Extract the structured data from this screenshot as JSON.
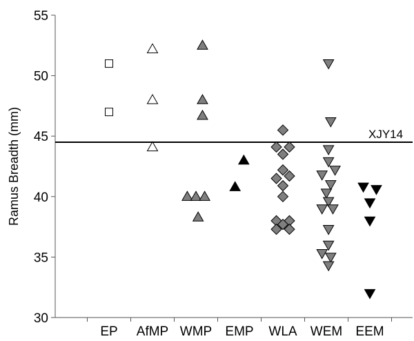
{
  "chart_data": {
    "type": "scatter",
    "title": "",
    "xlabel": "",
    "ylabel": "Ramus Breadth (mm)",
    "ylim": [
      30,
      55
    ],
    "yticks": [
      30,
      35,
      40,
      45,
      50,
      55
    ],
    "grid": false,
    "categories": [
      "EP",
      "AfMP",
      "WMP",
      "EMP",
      "WLA",
      "WEM",
      "EEM"
    ],
    "reference_line": {
      "label": "XJY14",
      "value": 44.5
    },
    "series": [
      {
        "category": "EP",
        "marker": "square",
        "fill": "#ffffff",
        "points": [
          {
            "dx": 0,
            "y": 51
          },
          {
            "dx": 0,
            "y": 47
          }
        ]
      },
      {
        "category": "AfMP",
        "marker": "triangle-up",
        "fill": "#ffffff",
        "points": [
          {
            "dx": 0,
            "y": 52.2
          },
          {
            "dx": 0,
            "y": 48
          },
          {
            "dx": 0,
            "y": 44.1
          }
        ]
      },
      {
        "category": "WMP",
        "marker": "triangle-up",
        "fill": "#7f7f7f",
        "points": [
          {
            "dx": 0.15,
            "y": 52.5
          },
          {
            "dx": 0.15,
            "y": 48
          },
          {
            "dx": 0.15,
            "y": 46.7
          },
          {
            "dx": -0.2,
            "y": 40
          },
          {
            "dx": 0,
            "y": 40
          },
          {
            "dx": 0.2,
            "y": 40
          },
          {
            "dx": 0.05,
            "y": 38.3
          }
        ]
      },
      {
        "category": "EMP",
        "marker": "triangle-up",
        "fill": "#000000",
        "points": [
          {
            "dx": 0.1,
            "y": 43
          },
          {
            "dx": -0.1,
            "y": 40.8
          }
        ]
      },
      {
        "category": "WLA",
        "marker": "diamond",
        "fill": "#7f7f7f",
        "points": [
          {
            "dx": 0,
            "y": 45.5
          },
          {
            "dx": -0.15,
            "y": 44.1
          },
          {
            "dx": 0.15,
            "y": 44.1
          },
          {
            "dx": 0,
            "y": 43.5
          },
          {
            "dx": 0,
            "y": 42.2
          },
          {
            "dx": -0.15,
            "y": 41.5
          },
          {
            "dx": 0.15,
            "y": 41.7
          },
          {
            "dx": 0,
            "y": 40.9
          },
          {
            "dx": 0,
            "y": 40
          },
          {
            "dx": -0.15,
            "y": 38
          },
          {
            "dx": 0.15,
            "y": 38
          },
          {
            "dx": 0,
            "y": 37.7
          },
          {
            "dx": -0.15,
            "y": 37.3
          },
          {
            "dx": 0.15,
            "y": 37.3
          }
        ]
      },
      {
        "category": "WEM",
        "marker": "triangle-down",
        "fill": "#7f7f7f",
        "points": [
          {
            "dx": 0.05,
            "y": 51
          },
          {
            "dx": 0.1,
            "y": 46.2
          },
          {
            "dx": 0.05,
            "y": 43.9
          },
          {
            "dx": 0.05,
            "y": 42.9
          },
          {
            "dx": 0.2,
            "y": 42.2
          },
          {
            "dx": -0.1,
            "y": 41.8
          },
          {
            "dx": 0.1,
            "y": 41
          },
          {
            "dx": 0,
            "y": 40.3
          },
          {
            "dx": 0.05,
            "y": 39.6
          },
          {
            "dx": -0.1,
            "y": 39
          },
          {
            "dx": 0.15,
            "y": 39
          },
          {
            "dx": 0.05,
            "y": 37.3
          },
          {
            "dx": 0.05,
            "y": 36
          },
          {
            "dx": -0.1,
            "y": 35.3
          },
          {
            "dx": 0.1,
            "y": 35
          },
          {
            "dx": 0.05,
            "y": 34.3
          }
        ]
      },
      {
        "category": "EEM",
        "marker": "triangle-down",
        "fill": "#000000",
        "points": [
          {
            "dx": -0.15,
            "y": 40.8
          },
          {
            "dx": 0.15,
            "y": 40.6
          },
          {
            "dx": 0,
            "y": 39.5
          },
          {
            "dx": 0,
            "y": 38
          },
          {
            "dx": 0,
            "y": 32
          }
        ]
      }
    ]
  }
}
